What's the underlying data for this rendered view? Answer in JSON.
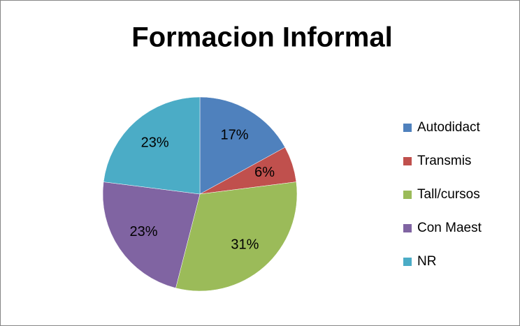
{
  "chart_data": {
    "type": "pie",
    "title": "Formacion Informal",
    "categories": [
      "Autodidact",
      "Transmis",
      "Tall/cursos",
      "Con Maest",
      "NR"
    ],
    "values": [
      17,
      6,
      31,
      23,
      23
    ],
    "value_labels": [
      "17%",
      "6%",
      "31%",
      "23%",
      "23%"
    ],
    "colors": [
      "#4f81bd",
      "#c0504d",
      "#9bbb59",
      "#8064a2",
      "#4bacc6"
    ],
    "legend": "right"
  }
}
